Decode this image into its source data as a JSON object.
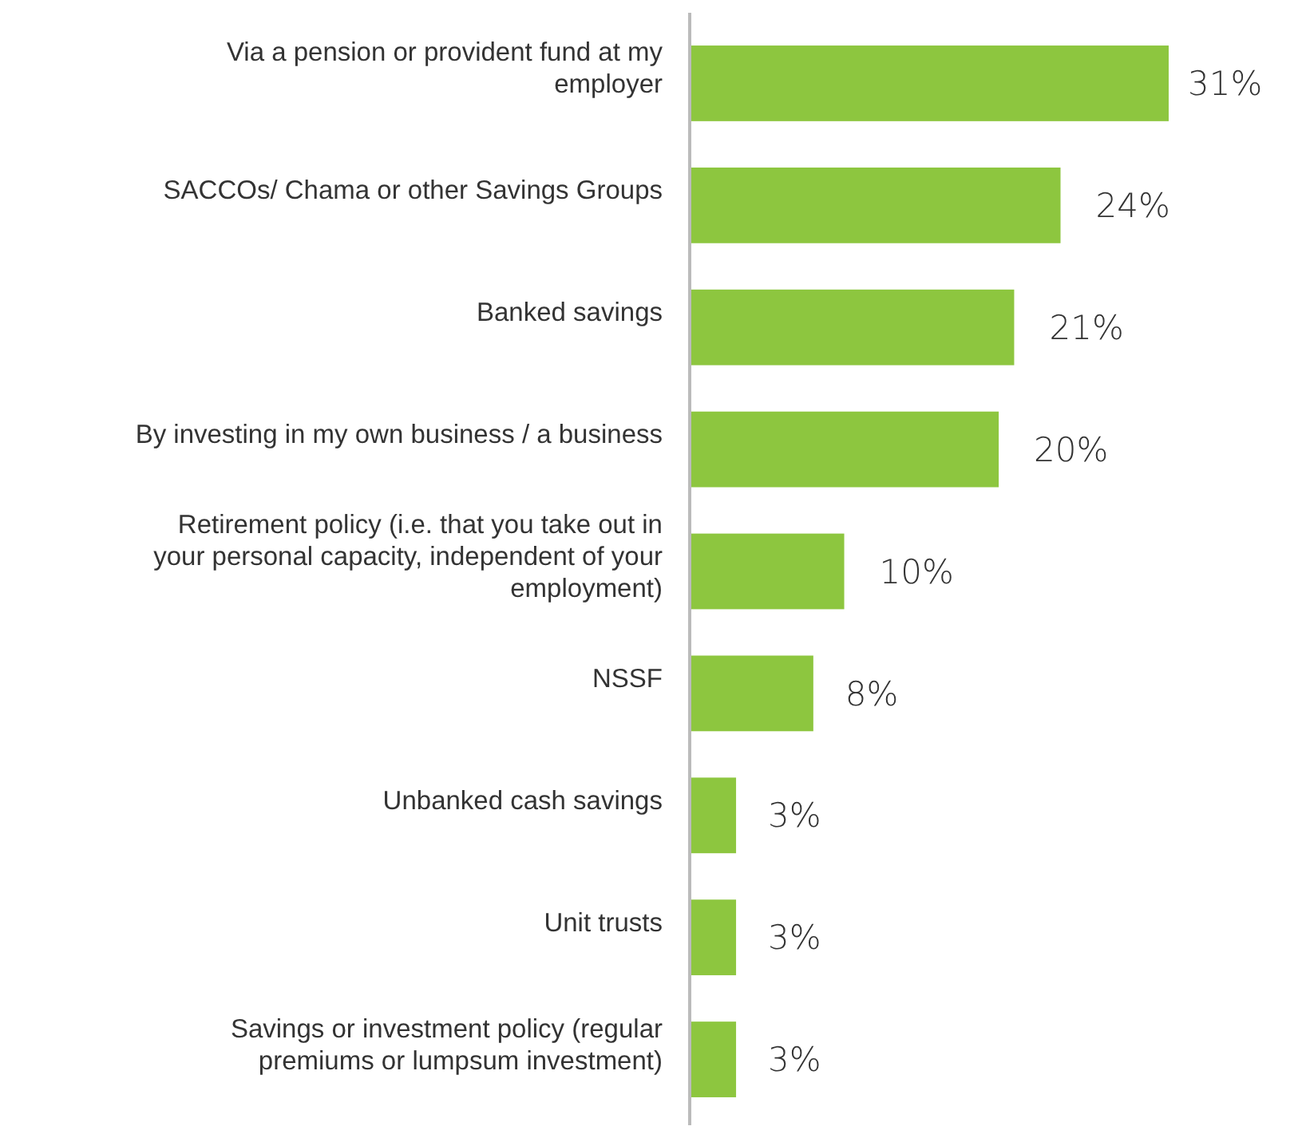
{
  "chart_data": {
    "type": "bar",
    "orientation": "horizontal",
    "data_labels": true,
    "value_labels": [
      "31%",
      "24%",
      "21%",
      "20%",
      "10%",
      "8%",
      "3%",
      "3%",
      "3%"
    ],
    "categories": [
      "Via a pension or provident fund at my employer",
      "SACCOs/ Chama or other Savings Groups",
      "Banked savings",
      "By investing in my own business / a business",
      "Retirement policy (i.e. that you take out in your personal capacity, independent of your employment)",
      "NSSF",
      "Unbanked cash savings",
      "Unit trusts",
      "Savings or investment policy (regular premiums or lumpsum investment)"
    ],
    "values": [
      31,
      24,
      21,
      20,
      10,
      8,
      3,
      3,
      3
    ],
    "color": "#8dc63f"
  }
}
